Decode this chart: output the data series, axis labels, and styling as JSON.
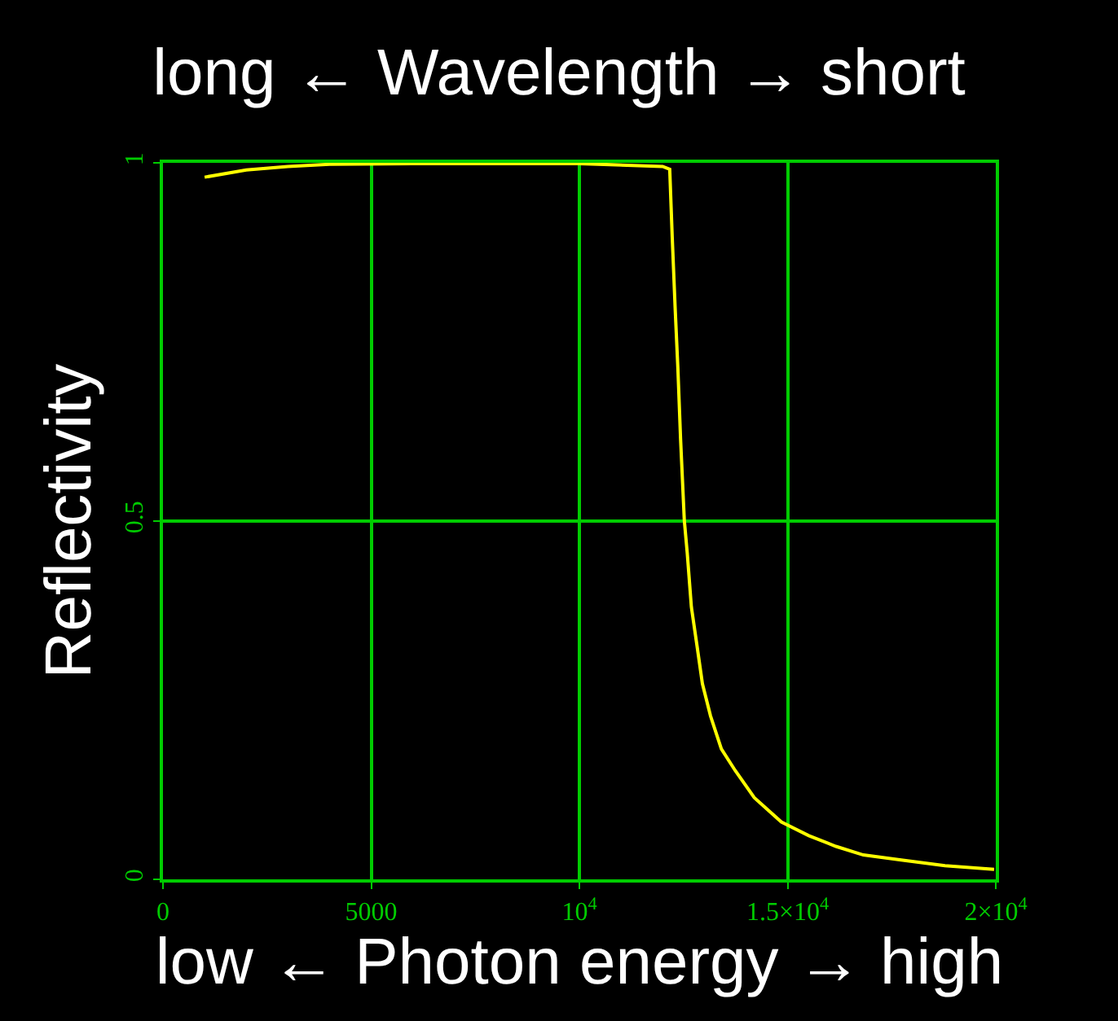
{
  "chart_data": {
    "type": "line",
    "title": "long ← Wavelength → short",
    "xlabel": "low ← Photon energy → high",
    "ylabel": "Reflectivity",
    "x": [
      1000,
      2000,
      3000,
      4000,
      6000,
      10000,
      12000,
      12170,
      12230,
      12300,
      12365,
      12430,
      12520,
      12590,
      12690,
      12825,
      12955,
      13150,
      13410,
      13740,
      14200,
      14850,
      15510,
      16160,
      16820,
      17730,
      18780,
      19960
    ],
    "series": [
      {
        "color": "#ffff00",
        "values": [
          0.98,
          0.99,
          0.995,
          0.998,
          0.999,
          0.999,
          0.995,
          0.991,
          0.896,
          0.797,
          0.714,
          0.615,
          0.501,
          0.456,
          0.38,
          0.326,
          0.273,
          0.228,
          0.182,
          0.152,
          0.114,
          0.08,
          0.061,
          0.046,
          0.034,
          0.027,
          0.019,
          0.014
        ]
      }
    ],
    "xlim": [
      0,
      20000
    ],
    "ylim": [
      0,
      1
    ],
    "xticks": [
      0,
      5000,
      {
        "value": 10000,
        "label": "10$^{4}$"
      },
      {
        "value": 15000,
        "label": "1.5×10$^{4}$"
      },
      {
        "value": 20000,
        "label": "2×10$^{4}$"
      }
    ],
    "yticks": [
      0,
      0.5,
      1
    ],
    "grid": true,
    "marker": "none",
    "line_style": "solid"
  }
}
